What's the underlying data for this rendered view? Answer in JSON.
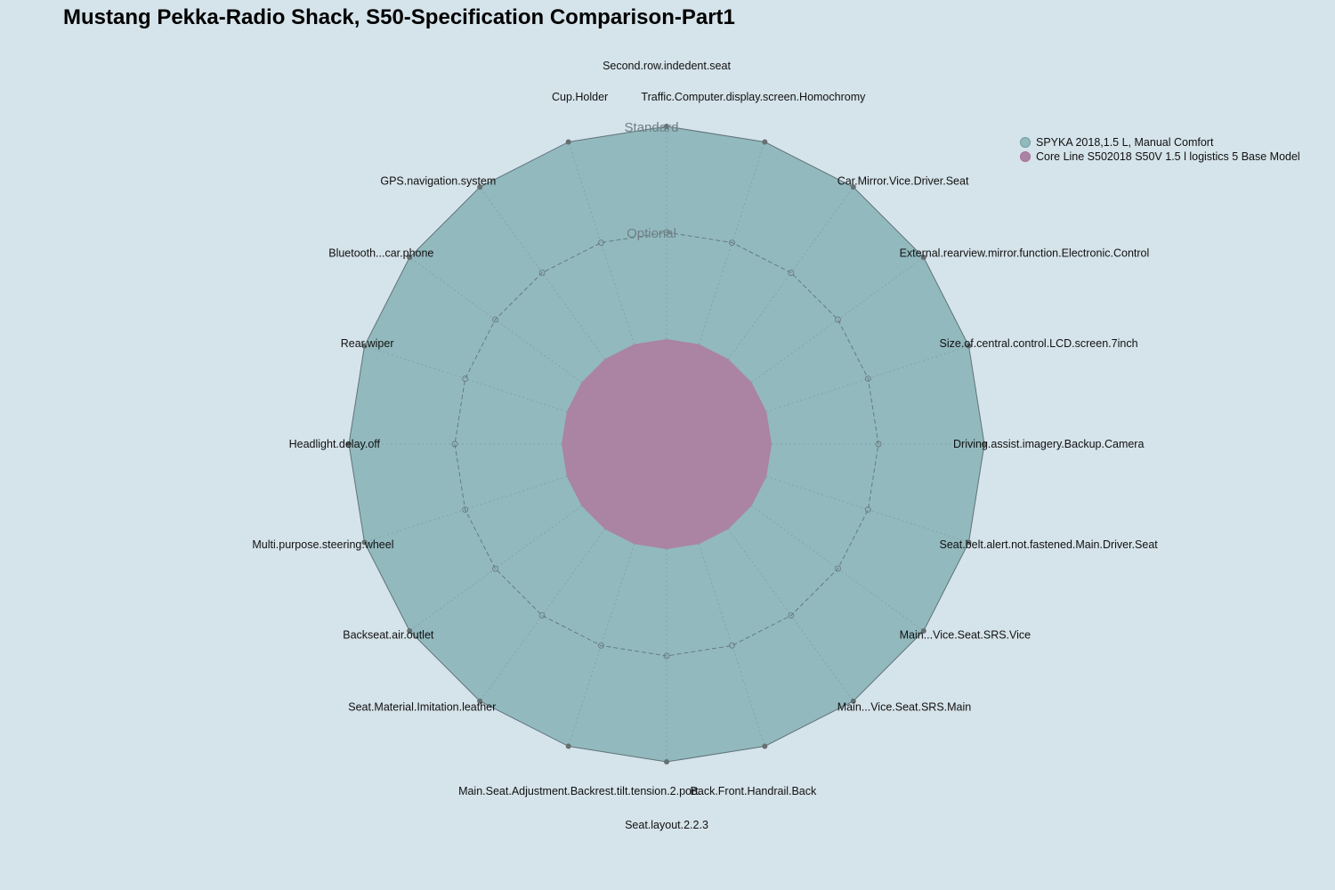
{
  "chart_data": {
    "type": "radar",
    "title": "Mustang Pekka-Radio Shack, S50-Specification Comparison-Part1",
    "levels": [
      "Optional",
      "Standard"
    ],
    "axes": [
      "Second.row.indedent.seat",
      "Traffic.Computer.display.screen.Homochromy",
      "Car.Mirror.Vice.Driver.Seat",
      "External.rearview.mirror.function.Electronic.Control",
      "Size.of.central.control.LCD.screen.7inch",
      "Driving.assist.imagery.Backup.Camera",
      "Seat.belt.alert.not.fastened.Main.Driver.Seat",
      "Main...Vice.Seat.SRS.Vice",
      "Main...Vice.Seat.SRS.Main",
      "Back.Front.Handrail.Back",
      "Seat.layout.2.2.3",
      "Main.Seat.Adjustment.Backrest.tilt.tension.2.port.",
      "Seat.Material.Imitation.leather",
      "Backseat.air.outlet",
      "Multi.purpose.steering.wheel",
      "Headlight.delay.off",
      "Rear.wiper",
      "Bluetooth...car.phone",
      "GPS.navigation.system",
      "Cup.Holder"
    ],
    "series": [
      {
        "name": "SPYKA 2018,1.5 L, Manual Comfort",
        "color": "#92b9be",
        "values": [
          2,
          2,
          2,
          2,
          2,
          2,
          2,
          2,
          2,
          2,
          2,
          2,
          2,
          2,
          2,
          2,
          2,
          2,
          2,
          2
        ]
      },
      {
        "name": "Core Line S502018 S50V 1.5 l logistics 5 Base Model",
        "color": "#aa84a2",
        "values": [
          0,
          0,
          0,
          0,
          0,
          0,
          0,
          0,
          0,
          0,
          0,
          0,
          0,
          0,
          0,
          0,
          0,
          0,
          0,
          0
        ]
      }
    ],
    "range": [
      0,
      2
    ],
    "legend_position": "top-right",
    "background_color": "#d5e3ea"
  }
}
